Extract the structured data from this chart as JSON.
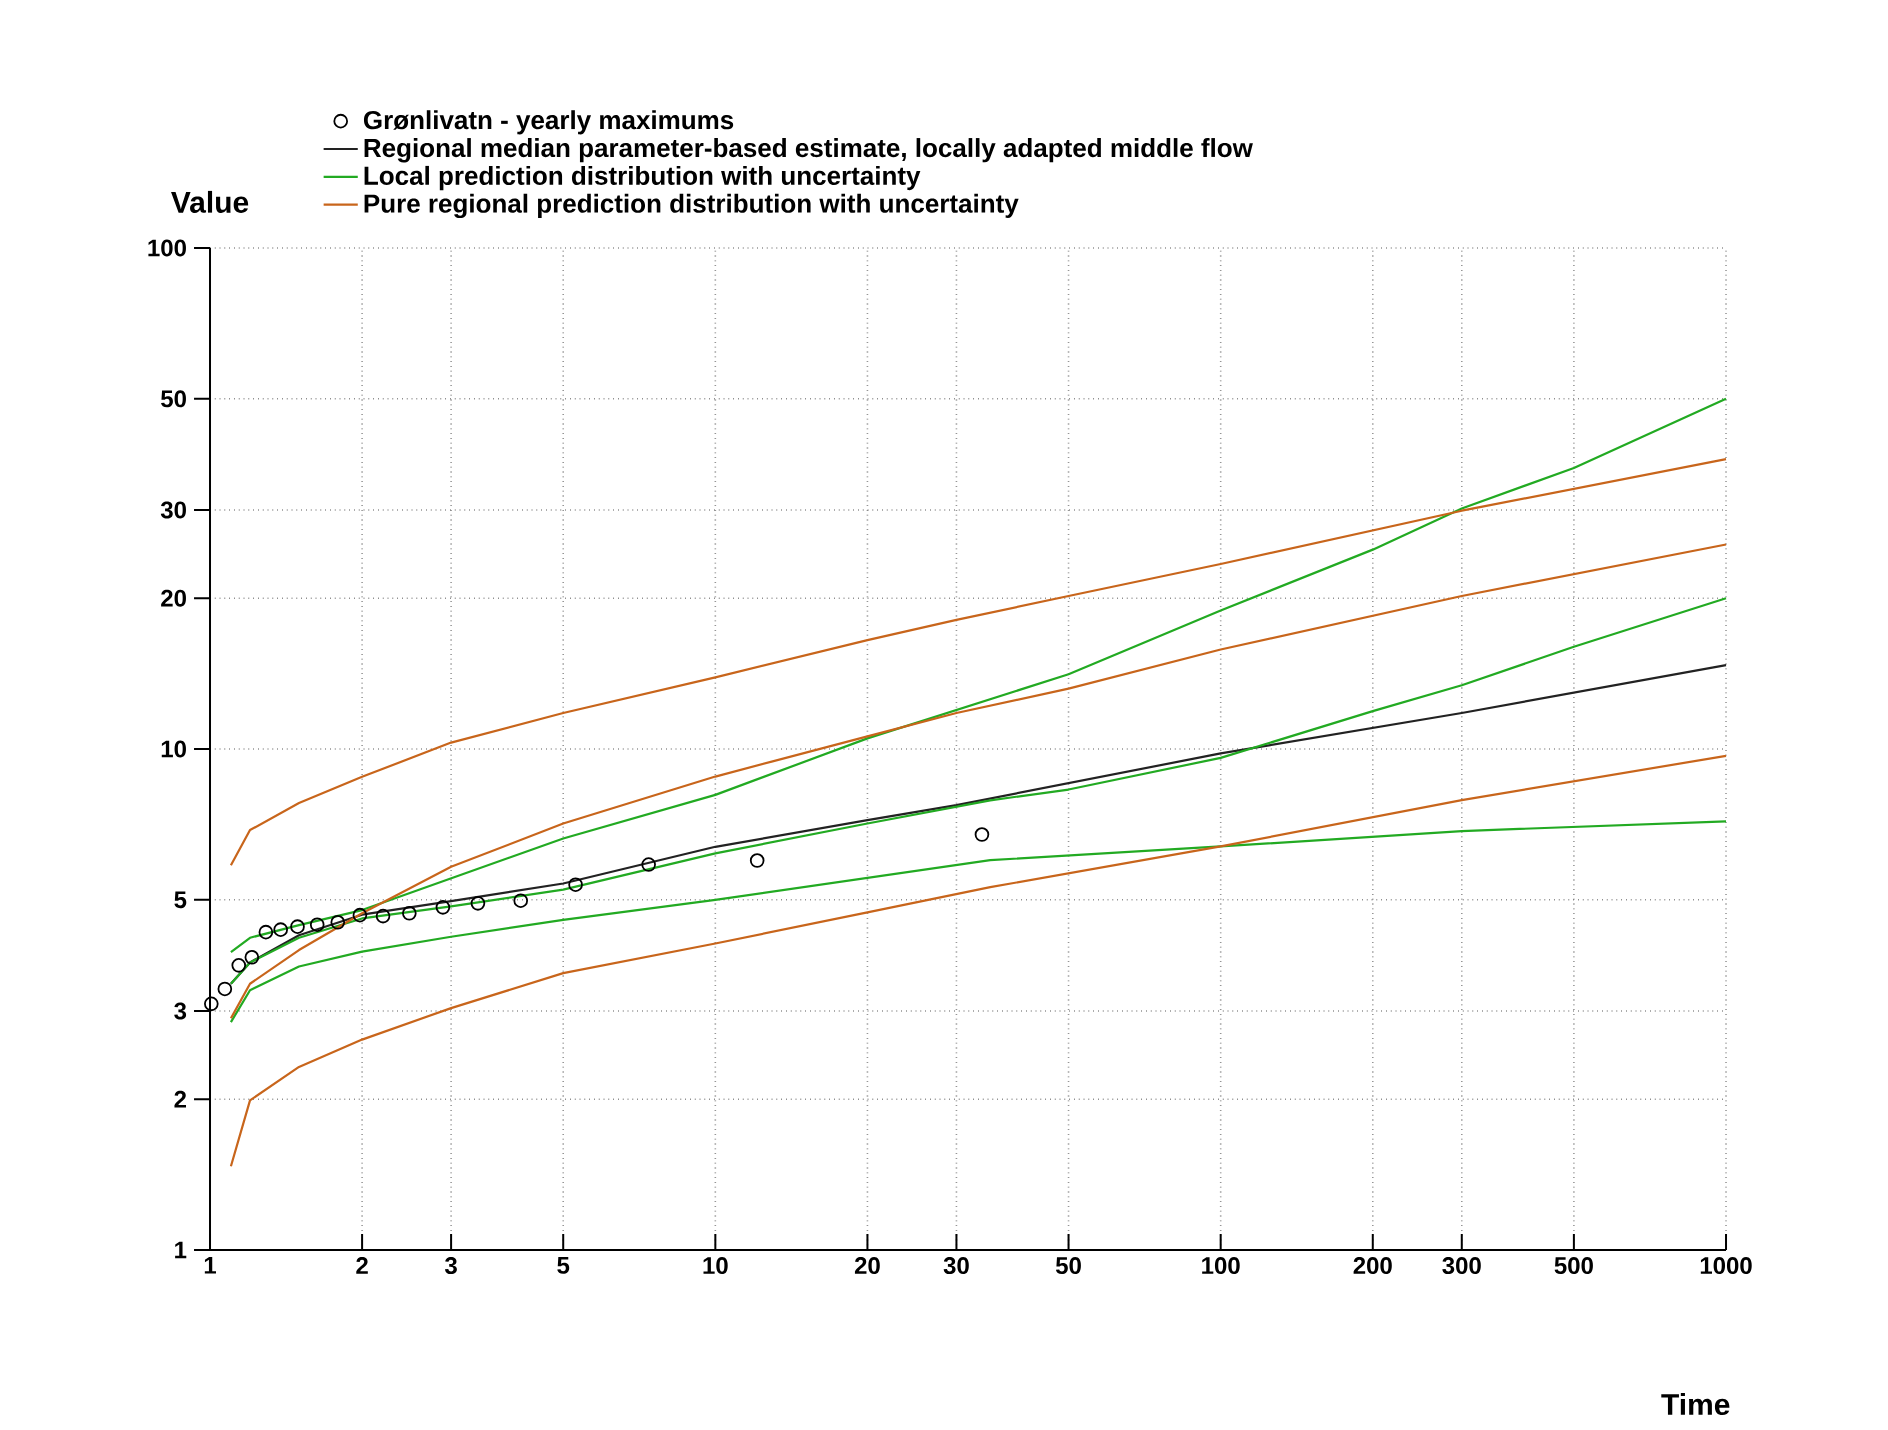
{
  "chart_data": {
    "type": "line",
    "xlabel": "Time",
    "ylabel": "Value",
    "log": "xy",
    "grid": true,
    "legend": "top",
    "xlim": [
      1,
      1000
    ],
    "ylim": [
      1,
      100
    ],
    "xticks": [
      1,
      2,
      3,
      5,
      10,
      20,
      30,
      50,
      100,
      200,
      300,
      500,
      1000
    ],
    "yticks": [
      1,
      2,
      3,
      5,
      10,
      20,
      30,
      50,
      100
    ],
    "series": [
      {
        "name": "Grønlivatn - yearly maximums",
        "type": "scatter",
        "marker": "circle",
        "color": "#000000",
        "x": [
          1.006,
          1.07,
          1.14,
          1.21,
          1.29,
          1.38,
          1.49,
          1.63,
          1.79,
          1.98,
          2.2,
          2.48,
          2.89,
          3.39,
          4.12,
          5.29,
          7.38,
          12.1,
          33.7
        ],
        "values": [
          3.1,
          3.32,
          3.7,
          3.84,
          4.31,
          4.36,
          4.42,
          4.46,
          4.51,
          4.66,
          4.64,
          4.7,
          4.83,
          4.92,
          4.98,
          5.36,
          5.88,
          5.99,
          6.75
        ]
      },
      {
        "name": "Regional median parameter-based estimate, locally adapted middle flow",
        "color": "#222222",
        "x": [
          1.1,
          1.2,
          1.5,
          2,
          3,
          5,
          10,
          20,
          30,
          100,
          300,
          1000
        ],
        "values": [
          3.4,
          3.75,
          4.25,
          4.67,
          4.97,
          5.39,
          6.38,
          7.21,
          7.73,
          9.8,
          11.8,
          14.7
        ]
      },
      {
        "name": "Local prediction distribution with uncertainty",
        "color": "#22aa22",
        "x": [
          1.1,
          1.2,
          1.5,
          2,
          3,
          5,
          10,
          20,
          35,
          50,
          100,
          200,
          300,
          500,
          1000
        ],
        "values": [
          3.4,
          3.75,
          4.2,
          4.59,
          4.85,
          5.24,
          6.19,
          7.1,
          7.9,
          8.3,
          9.6,
          11.9,
          13.4,
          16,
          20
        ]
      },
      {
        "color": "#22aa22",
        "x": [
          1.1,
          1.2,
          1.5,
          2,
          5,
          10,
          20,
          50,
          100,
          200,
          300,
          500,
          1000
        ],
        "values": [
          3.93,
          4.2,
          4.45,
          4.77,
          6.63,
          8.1,
          10.5,
          14.1,
          18.9,
          25,
          30.2,
          36.4,
          50
        ]
      },
      {
        "color": "#22aa22",
        "x": [
          1.1,
          1.2,
          1.5,
          2,
          3,
          5,
          10,
          35,
          100,
          300,
          1000
        ],
        "values": [
          2.85,
          3.3,
          3.68,
          3.94,
          4.22,
          4.56,
          5,
          6,
          6.39,
          6.86,
          7.17
        ]
      },
      {
        "name": "Pure regional prediction distribution with uncertainty",
        "color": "#c8651b",
        "x": [
          1.1,
          1.2,
          1.5,
          2,
          3,
          5,
          10,
          20,
          30,
          50,
          100,
          300,
          1000
        ],
        "values": [
          2.9,
          3.4,
          3.97,
          4.7,
          5.82,
          7.1,
          8.81,
          10.6,
          11.8,
          13.2,
          15.8,
          20.2,
          25.6
        ]
      },
      {
        "color": "#c8651b",
        "x": [
          1.1,
          1.2,
          1.5,
          2,
          3,
          5,
          10,
          20,
          30,
          50,
          100,
          300,
          1000
        ],
        "values": [
          5.86,
          6.89,
          7.8,
          8.8,
          10.3,
          11.8,
          13.9,
          16.5,
          18.1,
          20.2,
          23.4,
          29.9,
          37.9
        ]
      },
      {
        "color": "#c8651b",
        "x": [
          1.1,
          1.2,
          1.5,
          2,
          3,
          5,
          10,
          20,
          35,
          100,
          300,
          1000
        ],
        "values": [
          1.47,
          1.99,
          2.32,
          2.63,
          3.04,
          3.57,
          4.09,
          4.72,
          5.3,
          6.39,
          7.91,
          9.69
        ]
      }
    ]
  }
}
